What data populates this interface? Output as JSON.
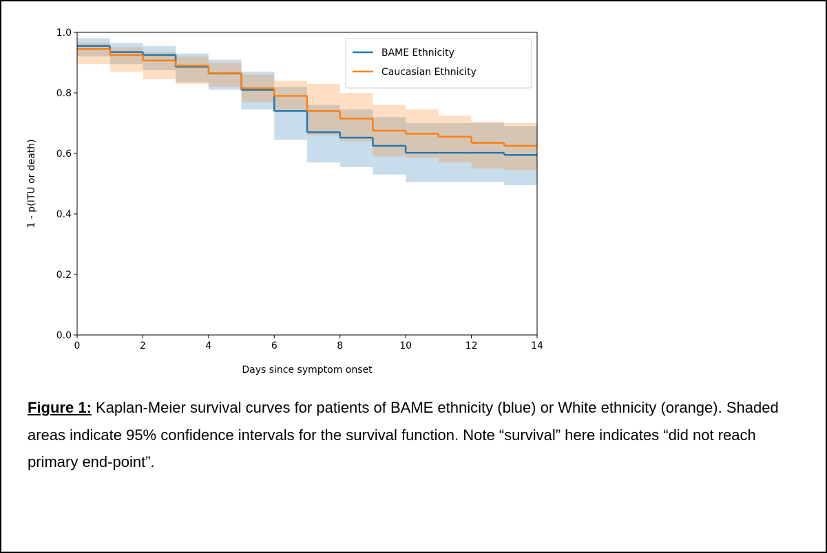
{
  "chart_data": {
    "type": "step",
    "xlabel": "Days since symptom onset",
    "ylabel": "1 - p(ITU or death)",
    "x": [
      0,
      1,
      2,
      3,
      4,
      5,
      6,
      7,
      8,
      9,
      10,
      11,
      12,
      13
    ],
    "xlim": [
      0,
      14
    ],
    "xticks": [
      0,
      2,
      4,
      6,
      8,
      10,
      12,
      14
    ],
    "ylim": [
      0,
      1
    ],
    "yticks": [
      {
        "value": 0,
        "label": "0.0"
      },
      0.2,
      0.4,
      0.6,
      0.8,
      {
        "value": 1,
        "label": "1.0"
      }
    ],
    "legend": "upper right",
    "series": [
      {
        "name": "BAME Ethnicity",
        "color": "#1f77b4",
        "values": [
          0.955,
          0.935,
          0.925,
          0.886,
          0.864,
          0.81,
          0.74,
          0.67,
          0.652,
          0.625,
          0.602,
          0.602,
          0.602,
          0.595
        ],
        "upper": [
          0.98,
          0.965,
          0.955,
          0.93,
          0.91,
          0.87,
          0.82,
          0.76,
          0.745,
          0.72,
          0.7,
          0.7,
          0.7,
          0.69
        ],
        "lower": [
          0.92,
          0.895,
          0.875,
          0.835,
          0.81,
          0.745,
          0.645,
          0.57,
          0.555,
          0.53,
          0.505,
          0.505,
          0.505,
          0.495
        ]
      },
      {
        "name": "Caucasian Ethnicity",
        "color": "#ff7f0e",
        "values": [
          0.945,
          0.925,
          0.907,
          0.89,
          0.865,
          0.815,
          0.79,
          0.74,
          0.715,
          0.675,
          0.665,
          0.655,
          0.635,
          0.625
        ],
        "upper": [
          0.965,
          0.95,
          0.935,
          0.92,
          0.9,
          0.86,
          0.84,
          0.83,
          0.8,
          0.76,
          0.745,
          0.725,
          0.705,
          0.7
        ],
        "lower": [
          0.895,
          0.87,
          0.845,
          0.83,
          0.82,
          0.77,
          0.74,
          0.66,
          0.64,
          0.59,
          0.585,
          0.57,
          0.55,
          0.545
        ]
      }
    ]
  },
  "caption": {
    "label": "Figure 1:",
    "text": " Kaplan-Meier survival curves for patients of BAME ethnicity (blue) or White ethnicity (orange). Shaded areas indicate 95% confidence intervals for the survival function. Note “survival” here indicates “did not reach primary end-point”."
  }
}
